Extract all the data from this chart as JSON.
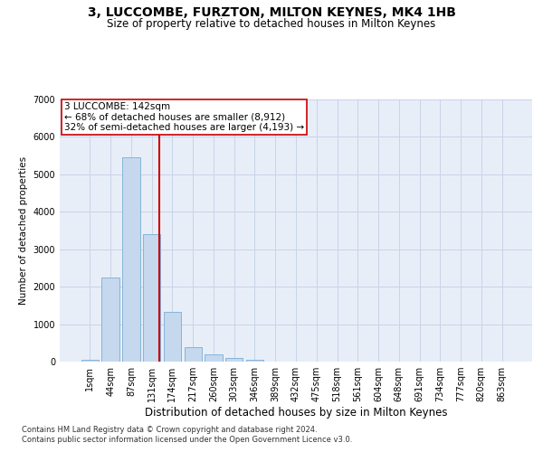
{
  "title": "3, LUCCOMBE, FURZTON, MILTON KEYNES, MK4 1HB",
  "subtitle": "Size of property relative to detached houses in Milton Keynes",
  "xlabel": "Distribution of detached houses by size in Milton Keynes",
  "ylabel": "Number of detached properties",
  "footnote1": "Contains HM Land Registry data © Crown copyright and database right 2024.",
  "footnote2": "Contains public sector information licensed under the Open Government Licence v3.0.",
  "annotation_title": "3 LUCCOMBE: 142sqm",
  "annotation_line2": "← 68% of detached houses are smaller (8,912)",
  "annotation_line3": "32% of semi-detached houses are larger (4,193) →",
  "bar_labels": [
    "1sqm",
    "44sqm",
    "87sqm",
    "131sqm",
    "174sqm",
    "217sqm",
    "260sqm",
    "303sqm",
    "346sqm",
    "389sqm",
    "432sqm",
    "475sqm",
    "518sqm",
    "561sqm",
    "604sqm",
    "648sqm",
    "691sqm",
    "734sqm",
    "777sqm",
    "820sqm",
    "863sqm"
  ],
  "bar_values": [
    50,
    2250,
    5450,
    3400,
    1320,
    380,
    200,
    95,
    40,
    10,
    5,
    2,
    1,
    0,
    0,
    0,
    0,
    0,
    0,
    0,
    0
  ],
  "bar_color": "#c5d8ee",
  "bar_edge_color": "#7aadd4",
  "grid_color": "#c8d4e8",
  "background_color": "#e8eef8",
  "vline_x": 3.35,
  "vline_color": "#cc0000",
  "ylim": [
    0,
    7000
  ],
  "yticks": [
    0,
    1000,
    2000,
    3000,
    4000,
    5000,
    6000,
    7000
  ],
  "title_fontsize": 10,
  "subtitle_fontsize": 8.5,
  "xlabel_fontsize": 8.5,
  "ylabel_fontsize": 7.5,
  "tick_fontsize": 7,
  "annotation_fontsize": 7.5,
  "footnote_fontsize": 6
}
